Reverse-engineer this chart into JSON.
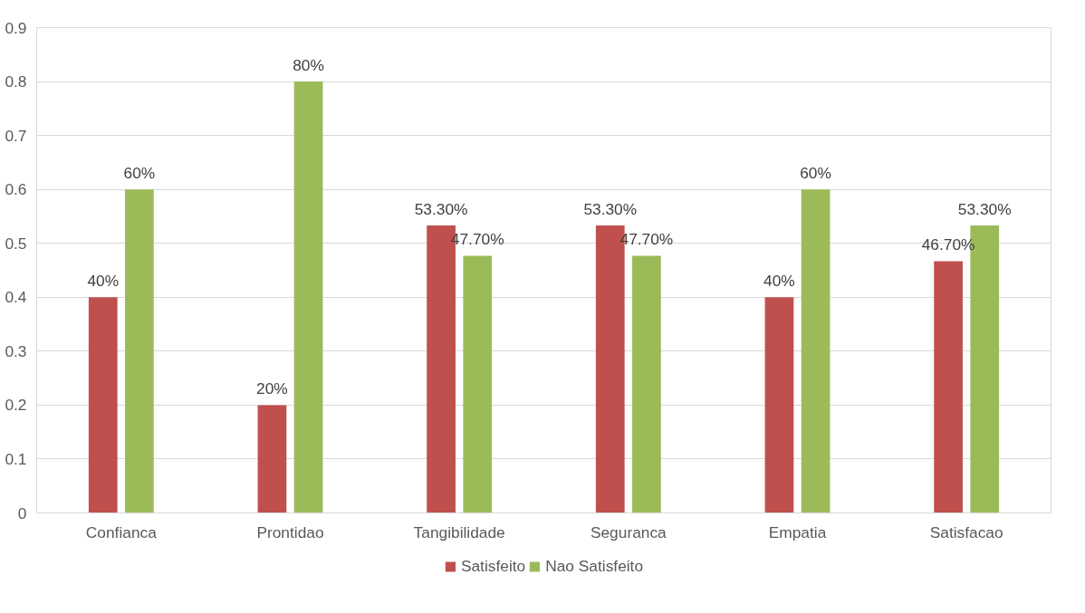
{
  "chart_data": {
    "type": "bar",
    "categories": [
      "Confianca",
      "Prontidao",
      "Tangibilidade",
      "Seguranca",
      "Empatia",
      "Satisfacao"
    ],
    "series": [
      {
        "name": "Satisfeito",
        "color": "#c0504d",
        "values": [
          0.4,
          0.2,
          0.533,
          0.533,
          0.4,
          0.467
        ],
        "value_labels": [
          "40%",
          "20%",
          "53.30%",
          "53.30%",
          "40%",
          "46.70%"
        ]
      },
      {
        "name": "Nao Satisfeito",
        "color": "#9bbb59",
        "values": [
          0.6,
          0.8,
          0.477,
          0.477,
          0.6,
          0.533
        ],
        "value_labels": [
          "60%",
          "80%",
          "47.70%",
          "47.70%",
          "60%",
          "53.30%"
        ]
      }
    ],
    "ylim": [
      0,
      0.9
    ],
    "yticks": [
      {
        "value": 0,
        "label": "0"
      },
      0.1,
      0.2,
      0.3,
      0.4,
      0.5,
      0.6,
      0.7,
      0.8,
      0.9
    ],
    "grid": "y",
    "legend": "bottom"
  }
}
